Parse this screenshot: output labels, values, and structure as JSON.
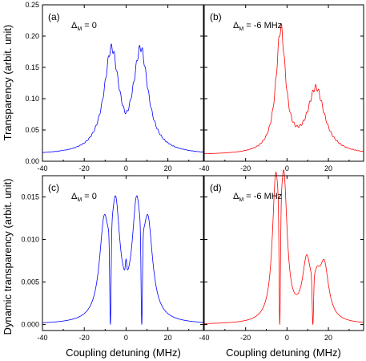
{
  "figure": {
    "ylabel_top": "Transparency (arbit. unit)",
    "ylabel_bottom": "Dynamic transparency (arbit. unit)",
    "xlabel": "Coupling detuning (MHz)"
  },
  "chart_data": [
    {
      "id": "a",
      "type": "line",
      "panel_label": "(a)",
      "annotation": {
        "symbol": "Δ",
        "sub": "M",
        "text": " = 0"
      },
      "color": "#0000ff",
      "xlim": [
        -40,
        37
      ],
      "ylim": [
        0,
        0.25
      ],
      "xticks": [
        -40,
        -20,
        0,
        20
      ],
      "yticks": [
        0.0,
        0.05,
        0.1,
        0.15,
        0.2,
        0.25
      ],
      "ytick_labels": [
        "0.00",
        "0.05",
        "0.10",
        "0.15",
        "0.20",
        "0.25"
      ],
      "baseline": 0.01,
      "peaks": [
        {
          "center": -7,
          "amplitude": 0.16,
          "width": 4.3
        },
        {
          "center": 7,
          "amplitude": 0.16,
          "width": 4.3
        }
      ],
      "dip": {
        "center": 0,
        "depth": 0.02,
        "width": 2.5
      },
      "ripple": 0.006,
      "series": [
        {
          "values_summary": "double peak, max ≈0.17 at x≈-7 and x≈+7, min ≈0.10 at x≈0, baseline ≈0.01"
        }
      ]
    },
    {
      "id": "b",
      "type": "line",
      "panel_label": "(b)",
      "annotation": {
        "symbol": "Δ",
        "sub": "M",
        "text": " = -6 MHz"
      },
      "color": "#ff0000",
      "xlim": [
        -40,
        37
      ],
      "ylim": [
        0,
        0.25
      ],
      "xticks": [
        -40,
        -20,
        0,
        20
      ],
      "yticks": [
        0.0,
        0.05,
        0.1,
        0.15,
        0.2,
        0.25
      ],
      "baseline": 0.01,
      "peaks": [
        {
          "center": -3,
          "amplitude": 0.195,
          "width": 2.8
        },
        {
          "center": 14,
          "amplitude": 0.103,
          "width": 5.0
        }
      ],
      "dip": {
        "center": 5,
        "depth": 0.0,
        "width": 2.0
      },
      "ripple": 0.007,
      "series": [
        {
          "values_summary": "sharp peak ≈0.20 at x≈-3, broad peak ≈0.11 at x≈14, min ≈0.02 at x≈6"
        }
      ]
    },
    {
      "id": "c",
      "type": "line",
      "panel_label": "(c)",
      "annotation": {
        "symbol": "Δ",
        "sub": "M",
        "text": " = 0"
      },
      "color": "#0000ff",
      "xlim": [
        -40,
        37
      ],
      "ylim": [
        -0.0007,
        0.0175
      ],
      "xticks": [
        -40,
        -20,
        0,
        20
      ],
      "yticks": [
        0.0,
        0.005,
        0.01,
        0.015
      ],
      "ytick_labels": [
        "0.000",
        "0.005",
        "0.010",
        "0.015"
      ],
      "baseline": 0.0,
      "peaks": [
        {
          "center": -10.5,
          "amplitude": 0.0103,
          "width": 2.7
        },
        {
          "center": -5,
          "amplitude": 0.0121,
          "width": 2.5
        },
        {
          "center": 5,
          "amplitude": 0.0121,
          "width": 2.5
        },
        {
          "center": 10.5,
          "amplitude": 0.0103,
          "width": 2.7
        }
      ],
      "dips": [
        {
          "center": -7.5,
          "to": 0.0
        },
        {
          "center": 0,
          "to": 0.0077
        },
        {
          "center": 7.5,
          "to": 0.0
        }
      ],
      "series": [
        {
          "values_summary": "four peaks at -10.5 (0.0103), -5 (0.012), 5 (0.012), 10.5 (0.0103); sharp dips to 0 at ±7.5"
        }
      ]
    },
    {
      "id": "d",
      "type": "line",
      "panel_label": "(d)",
      "annotation": {
        "symbol": "Δ",
        "sub": "M",
        "text": " = -6 MHz"
      },
      "color": "#ff0000",
      "xlim": [
        -40,
        37
      ],
      "ylim": [
        -0.0007,
        0.0175
      ],
      "xticks": [
        -40,
        -20,
        0,
        20
      ],
      "yticks": [
        0.0,
        0.005,
        0.01,
        0.015
      ],
      "baseline": 0.0,
      "peaks": [
        {
          "center": -5.5,
          "amplitude": 0.0148,
          "width": 1.9
        },
        {
          "center": -1.5,
          "amplitude": 0.0149,
          "width": 1.9
        },
        {
          "center": 9.5,
          "amplitude": 0.0066,
          "width": 2.5
        },
        {
          "center": 14.5,
          "amplitude": 0.003,
          "width": 2.0
        },
        {
          "center": 18,
          "amplitude": 0.0061,
          "width": 2.6
        }
      ],
      "dips": [
        {
          "center": -3.5,
          "to": 0.0
        },
        {
          "center": 12.5,
          "to": 0.0
        }
      ],
      "series": [
        {
          "values_summary": "twin peaks ≈0.0149 at x≈-5.5 and -1.5 with sharp dip to 0 at -3.5; peaks ≈0.0066 at 9.5, ≈0.0062 at 18; dip to 0 at 12.5"
        }
      ]
    }
  ]
}
